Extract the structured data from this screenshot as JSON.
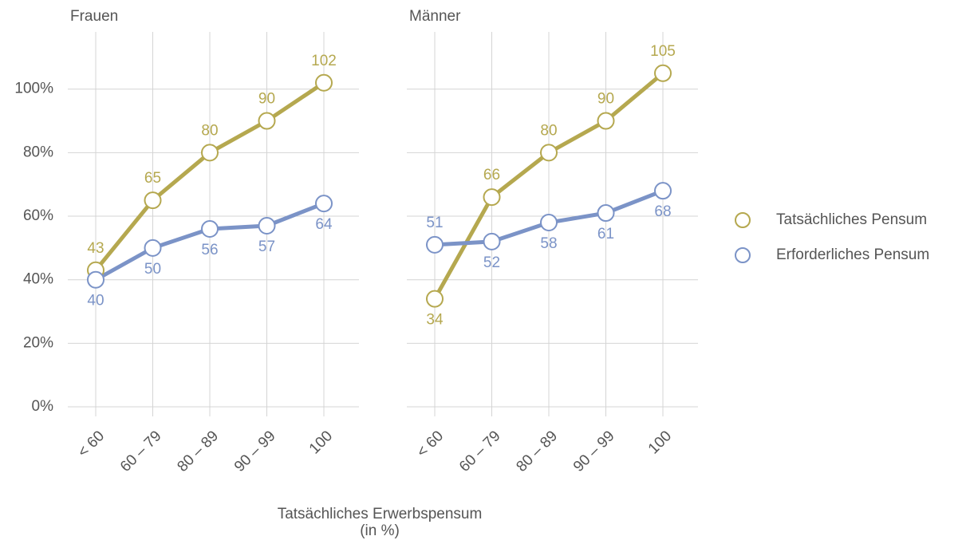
{
  "chart_data": {
    "type": "line",
    "facets": [
      "Frauen",
      "Männer"
    ],
    "categories": [
      "< 60",
      "60 – 79",
      "80 – 89",
      "90 – 99",
      "100"
    ],
    "series": [
      {
        "name": "Tatsächliches Pensum",
        "color": "#b5a84f",
        "values": [
          [
            43,
            65,
            80,
            90,
            102
          ],
          [
            34,
            66,
            80,
            90,
            105
          ]
        ]
      },
      {
        "name": "Erforderliches Pensum",
        "color": "#7b93c7",
        "values": [
          [
            40,
            50,
            56,
            57,
            64
          ],
          [
            51,
            52,
            58,
            61,
            68
          ]
        ]
      }
    ],
    "ylim": [
      -3,
      118
    ],
    "yticks": [
      {
        "value": 0,
        "label": "0%"
      },
      {
        "value": 20,
        "label": "20%"
      },
      {
        "value": 40,
        "label": "40%"
      },
      {
        "value": 60,
        "label": "60%"
      },
      {
        "value": 80,
        "label": "80%"
      },
      {
        "value": 100,
        "label": "100%"
      }
    ],
    "x_label": [
      "Tatsächliches Erwerbspensum",
      "(in %)"
    ],
    "grid": true
  }
}
